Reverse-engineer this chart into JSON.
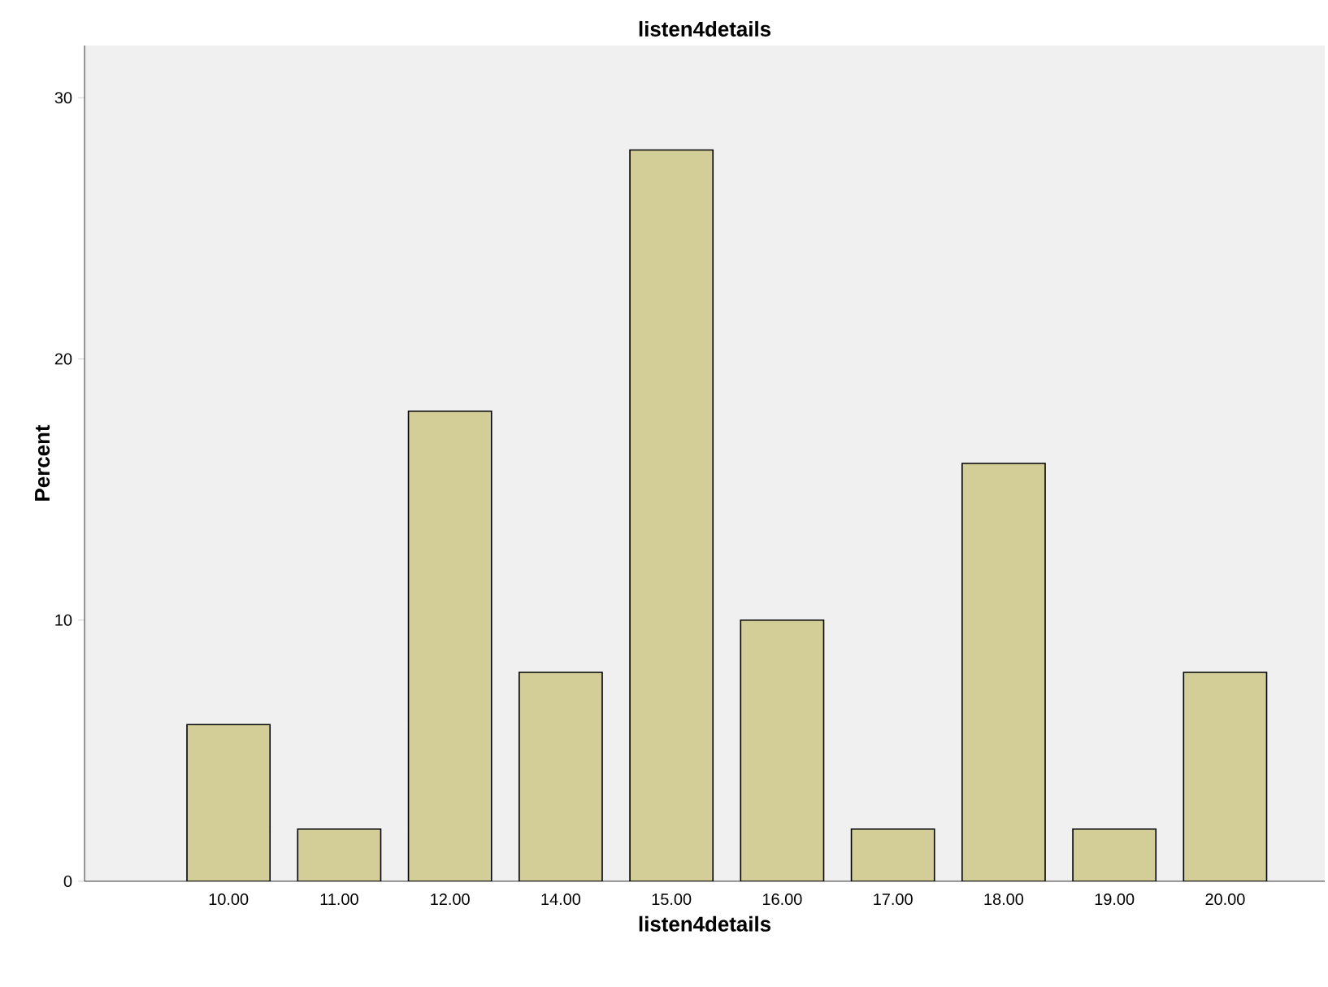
{
  "chart_data": {
    "type": "bar",
    "title": "listen4details",
    "xlabel": "listen4details",
    "ylabel": "Percent",
    "categories": [
      "10.00",
      "11.00",
      "12.00",
      "14.00",
      "15.00",
      "16.00",
      "17.00",
      "18.00",
      "19.00",
      "20.00"
    ],
    "values": [
      6,
      2,
      18,
      8,
      28,
      10,
      2,
      16,
      2,
      8
    ],
    "color": "#d3ce97",
    "ylim": [
      0,
      32
    ],
    "yticks": [
      0,
      10,
      20,
      30
    ],
    "grid": false
  }
}
